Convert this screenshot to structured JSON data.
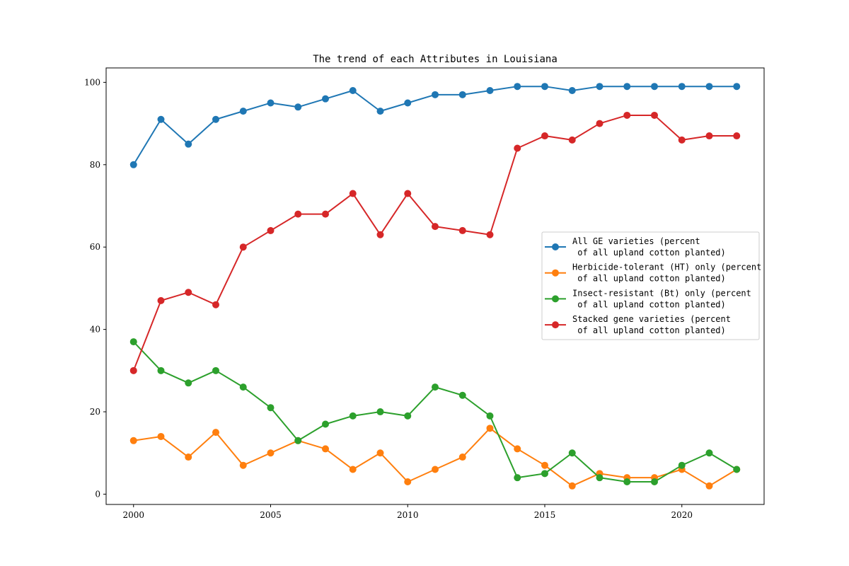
{
  "chart_data": {
    "type": "line",
    "title": "The trend of each Attributes in Louisiana",
    "xlabel": "",
    "ylabel": "",
    "x": [
      2000,
      2001,
      2002,
      2003,
      2004,
      2005,
      2006,
      2007,
      2008,
      2009,
      2010,
      2011,
      2012,
      2013,
      2014,
      2015,
      2016,
      2017,
      2018,
      2019,
      2020,
      2021,
      2022
    ],
    "xlim": [
      1999,
      2023
    ],
    "ylim": [
      -2.5,
      103.5
    ],
    "x_ticks": [
      2000,
      2005,
      2010,
      2015,
      2020
    ],
    "y_ticks": [
      0,
      20,
      40,
      60,
      80,
      100
    ],
    "grid": false,
    "legend_position": "center-right",
    "series": [
      {
        "name": "All GE varieties (percent\n of all upland cotton planted)",
        "color": "#1f77b4",
        "values": [
          80,
          91,
          85,
          91,
          93,
          95,
          94,
          96,
          98,
          93,
          95,
          97,
          97,
          98,
          99,
          99,
          98,
          99,
          99,
          99,
          99,
          99,
          99
        ]
      },
      {
        "name": "Herbicide-tolerant (HT) only (percent\n of all upland cotton planted)",
        "color": "#ff7f0e",
        "values": [
          13,
          14,
          9,
          15,
          7,
          10,
          13,
          11,
          6,
          10,
          3,
          6,
          9,
          16,
          11,
          7,
          2,
          5,
          4,
          4,
          6,
          2,
          6
        ]
      },
      {
        "name": "Insect-resistant (Bt) only (percent\n of all upland cotton planted)",
        "color": "#2ca02c",
        "values": [
          37,
          30,
          27,
          30,
          26,
          21,
          13,
          17,
          19,
          20,
          19,
          26,
          24,
          19,
          4,
          5,
          10,
          4,
          3,
          3,
          7,
          10,
          6
        ]
      },
      {
        "name": "Stacked gene varieties (percent\n of all upland cotton planted)",
        "color": "#d62728",
        "values": [
          30,
          47,
          49,
          46,
          60,
          64,
          68,
          68,
          73,
          63,
          73,
          65,
          64,
          63,
          84,
          87,
          86,
          90,
          92,
          92,
          86,
          87,
          87
        ]
      }
    ]
  }
}
